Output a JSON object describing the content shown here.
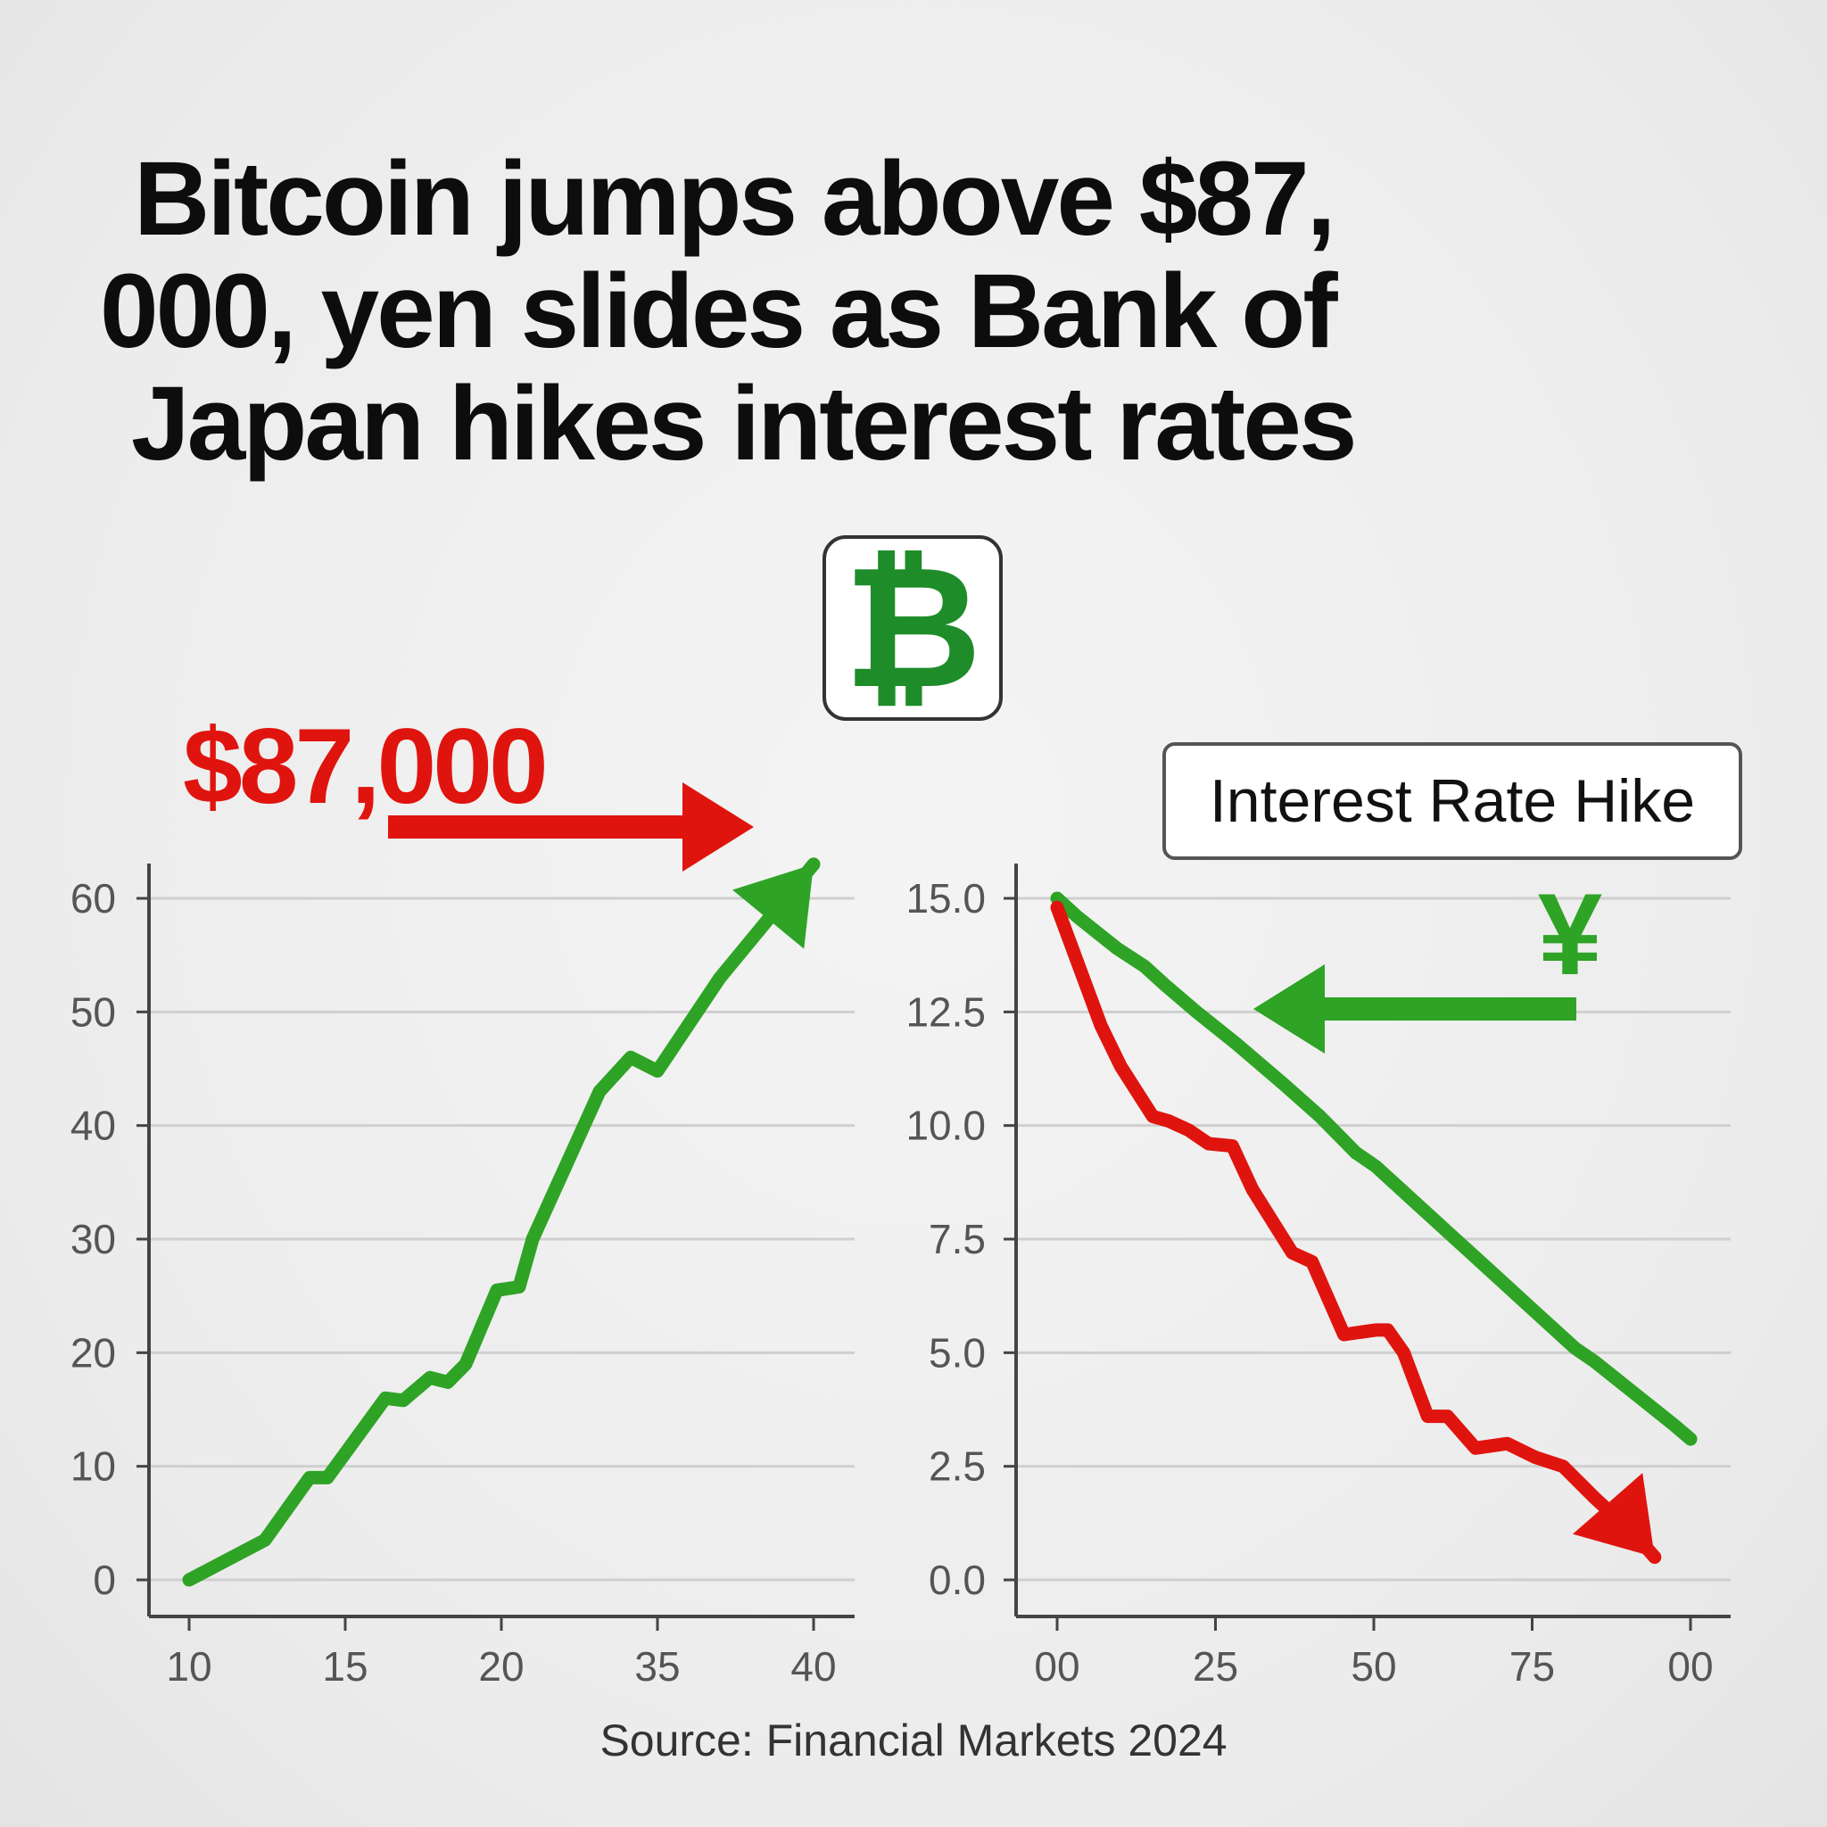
{
  "headline": {
    "line1": "Bitcoin jumps above $87,",
    "line2": "000, yen slides as Bank of",
    "line3": "Japan hikes interest rates"
  },
  "badge": {
    "symbol": "₿",
    "icon": "bitcoin-icon"
  },
  "price_callout": "$87,000",
  "rate_label": "Interest Rate Hike",
  "yen_symbol": "¥",
  "source": "Source: Financial Markets 2024",
  "colors": {
    "green": "#2ea325",
    "red": "#e0140e",
    "badge_green": "#1f8c2a",
    "text": "#0d0d0d"
  },
  "chart_data": [
    {
      "type": "line",
      "title": "",
      "xlabel": "",
      "ylabel": "",
      "ylim": [
        0,
        60
      ],
      "grid": true,
      "x_ticks": [
        "10",
        "15",
        "20",
        "35",
        "40"
      ],
      "y_ticks": [
        "0",
        "10",
        "20",
        "30",
        "40",
        "50",
        "60"
      ],
      "series": [
        {
          "color": "green",
          "end_arrow": true,
          "points": [
            [
              0,
              0
            ],
            [
              0.17,
              3.5
            ],
            [
              0.27,
              9
            ],
            [
              0.31,
              9
            ],
            [
              0.44,
              16
            ],
            [
              0.48,
              15.8
            ],
            [
              0.54,
              17.8
            ],
            [
              0.58,
              17.4
            ],
            [
              0.62,
              19
            ],
            [
              0.69,
              25.5
            ],
            [
              0.74,
              25.8
            ],
            [
              0.77,
              30
            ],
            [
              0.92,
              43
            ],
            [
              0.99,
              46
            ],
            [
              1.05,
              44.8
            ],
            [
              1.19,
              53
            ],
            [
              1.4,
              63
            ]
          ]
        }
      ]
    },
    {
      "type": "line",
      "title": "",
      "xlabel": "",
      "ylabel": "",
      "ylim": [
        0,
        15
      ],
      "grid": true,
      "x_ticks": [
        "00",
        "25",
        "50",
        "75",
        "00"
      ],
      "y_ticks": [
        "0.0",
        "2.5",
        "5.0",
        "7.5",
        "10.0",
        "12.5",
        "15.0"
      ],
      "series": [
        {
          "color": "green",
          "end_arrow": false,
          "points": [
            [
              0.25,
              15.0
            ],
            [
              0.3,
              14.6
            ],
            [
              0.4,
              13.9
            ],
            [
              0.47,
              13.5
            ],
            [
              0.52,
              13.1
            ],
            [
              0.6,
              12.5
            ],
            [
              0.7,
              11.8
            ],
            [
              0.82,
              10.9
            ],
            [
              0.91,
              10.2
            ],
            [
              1.0,
              9.4
            ],
            [
              1.05,
              9.1
            ],
            [
              1.15,
              8.3
            ],
            [
              1.25,
              7.5
            ],
            [
              1.35,
              6.7
            ],
            [
              1.45,
              5.9
            ],
            [
              1.55,
              5.1
            ],
            [
              1.6,
              4.8
            ],
            [
              1.7,
              4.1
            ],
            [
              1.8,
              3.4
            ],
            [
              1.84,
              3.1
            ]
          ]
        },
        {
          "color": "red",
          "end_arrow": true,
          "points": [
            [
              0.25,
              14.8
            ],
            [
              0.36,
              12.2
            ],
            [
              0.41,
              11.3
            ],
            [
              0.49,
              10.2
            ],
            [
              0.53,
              10.1
            ],
            [
              0.58,
              9.9
            ],
            [
              0.63,
              9.6
            ],
            [
              0.69,
              9.55
            ],
            [
              0.74,
              8.6
            ],
            [
              0.84,
              7.2
            ],
            [
              0.89,
              7.0
            ],
            [
              0.97,
              5.4
            ],
            [
              1.05,
              5.5
            ],
            [
              1.08,
              5.5
            ],
            [
              1.12,
              5.0
            ],
            [
              1.18,
              3.6
            ],
            [
              1.23,
              3.6
            ],
            [
              1.3,
              2.9
            ],
            [
              1.38,
              3.0
            ],
            [
              1.45,
              2.7
            ],
            [
              1.52,
              2.5
            ],
            [
              1.6,
              1.8
            ],
            [
              1.7,
              1.0
            ],
            [
              1.75,
              0.5
            ]
          ]
        }
      ]
    }
  ]
}
